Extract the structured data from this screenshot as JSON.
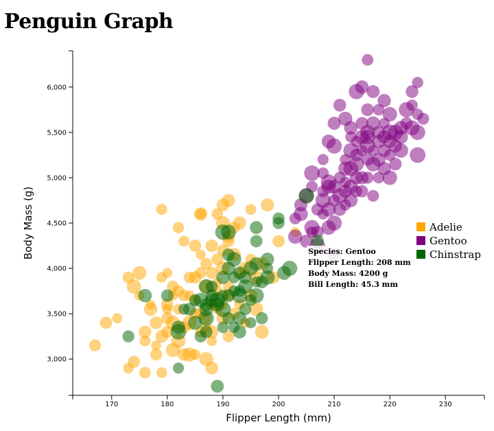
{
  "page": {
    "title": "Penguin Graph"
  },
  "tooltip": {
    "species": "Species: Gentoo",
    "flipper": "Flipper Length: 208 mm",
    "mass": "Body Mass: 4200 g",
    "bill": "Bill Length: 45.3 mm"
  },
  "chart_data": {
    "type": "scatter",
    "xlabel": "Flipper Length (mm)",
    "ylabel": "Body Mass (g)",
    "xlim": [
      163,
      237
    ],
    "ylim": [
      2600,
      6400
    ],
    "xticks": [
      170,
      180,
      190,
      200,
      210,
      220,
      230
    ],
    "yticks": [
      3000,
      3500,
      4000,
      4500,
      5000,
      5500,
      6000
    ],
    "xtick_labels": [
      "170",
      "180",
      "190",
      "200",
      "210",
      "220",
      "230"
    ],
    "ytick_labels": [
      "3,000",
      "3,500",
      "4,000",
      "4,500",
      "5,000",
      "5,500",
      "6,000"
    ],
    "legend_position": "right",
    "grid": false,
    "series": [
      {
        "name": "Adelie",
        "color": "#ffa500",
        "points": [
          [
            167,
            3150
          ],
          [
            169,
            3400
          ],
          [
            171,
            3450
          ],
          [
            173,
            2900
          ],
          [
            173,
            3900
          ],
          [
            174,
            2970
          ],
          [
            175,
            3700
          ],
          [
            175,
            3950
          ],
          [
            176,
            3300
          ],
          [
            176,
            2850
          ],
          [
            176,
            3200
          ],
          [
            177,
            3550
          ],
          [
            178,
            3400
          ],
          [
            178,
            3150
          ],
          [
            178,
            3050
          ],
          [
            179,
            2850
          ],
          [
            179,
            3250
          ],
          [
            179,
            3900
          ],
          [
            180,
            3600
          ],
          [
            180,
            3300
          ],
          [
            180,
            3550
          ],
          [
            180,
            3950
          ],
          [
            181,
            3100
          ],
          [
            181,
            3400
          ],
          [
            181,
            3700
          ],
          [
            181,
            3800
          ],
          [
            182,
            3200
          ],
          [
            182,
            3550
          ],
          [
            182,
            3750
          ],
          [
            183,
            3350
          ],
          [
            183,
            3050
          ],
          [
            183,
            4300
          ],
          [
            184,
            3700
          ],
          [
            184,
            3400
          ],
          [
            184,
            3900
          ],
          [
            185,
            3050
          ],
          [
            185,
            4250
          ],
          [
            185,
            3500
          ],
          [
            185,
            3650
          ],
          [
            186,
            4600
          ],
          [
            186,
            3300
          ],
          [
            186,
            3950
          ],
          [
            186,
            4150
          ],
          [
            187,
            3000
          ],
          [
            187,
            3350
          ],
          [
            187,
            3800
          ],
          [
            187,
            4050
          ],
          [
            187,
            3450
          ],
          [
            188,
            4250
          ],
          [
            188,
            3600
          ],
          [
            188,
            3300
          ],
          [
            188,
            2900
          ],
          [
            188,
            3200
          ],
          [
            189,
            3750
          ],
          [
            189,
            4100
          ],
          [
            189,
            3550
          ],
          [
            189,
            3850
          ],
          [
            190,
            4200
          ],
          [
            190,
            3450
          ],
          [
            190,
            4700
          ],
          [
            190,
            4000
          ],
          [
            191,
            3800
          ],
          [
            191,
            3250
          ],
          [
            191,
            4300
          ],
          [
            191,
            3700
          ],
          [
            192,
            4150
          ],
          [
            192,
            3500
          ],
          [
            192,
            4450
          ],
          [
            193,
            3600
          ],
          [
            193,
            3950
          ],
          [
            194,
            4000
          ],
          [
            194,
            3400
          ],
          [
            195,
            4100
          ],
          [
            195,
            3700
          ],
          [
            196,
            3550
          ],
          [
            196,
            3900
          ],
          [
            197,
            4050
          ],
          [
            197,
            3300
          ],
          [
            198,
            4700
          ],
          [
            199,
            3900
          ],
          [
            200,
            4300
          ],
          [
            203,
            4400
          ],
          [
            179,
            4650
          ],
          [
            182,
            4450
          ],
          [
            186,
            4600
          ],
          [
            189,
            4600
          ],
          [
            191,
            4750
          ],
          [
            193,
            4500
          ],
          [
            195,
            4650
          ],
          [
            184,
            3050
          ],
          [
            177,
            3600
          ],
          [
            183,
            3700
          ],
          [
            185,
            3900
          ],
          [
            186,
            3500
          ],
          [
            190,
            3600
          ],
          [
            174,
            3800
          ],
          [
            180,
            3450
          ],
          [
            190,
            4500
          ],
          [
            191,
            4350
          ],
          [
            188,
            3950
          ]
        ]
      },
      {
        "name": "Gentoo",
        "color": "#800080",
        "points": [
          [
            203,
            4550
          ],
          [
            205,
            4800
          ],
          [
            206,
            4450
          ],
          [
            207,
            4650
          ],
          [
            208,
            4600
          ],
          [
            208,
            4850
          ],
          [
            209,
            4450
          ],
          [
            209,
            4900
          ],
          [
            210,
            4150
          ],
          [
            210,
            4500
          ],
          [
            210,
            4750
          ],
          [
            211,
            4800
          ],
          [
            211,
            5000
          ],
          [
            212,
            4700
          ],
          [
            212,
            4950
          ],
          [
            212,
            5200
          ],
          [
            213,
            4750
          ],
          [
            213,
            5100
          ],
          [
            213,
            5300
          ],
          [
            214,
            4850
          ],
          [
            214,
            5000
          ],
          [
            214,
            5400
          ],
          [
            215,
            4850
          ],
          [
            215,
            5000
          ],
          [
            215,
            5300
          ],
          [
            215,
            5600
          ],
          [
            216,
            5000
          ],
          [
            216,
            5200
          ],
          [
            216,
            5500
          ],
          [
            216,
            6300
          ],
          [
            217,
            4800
          ],
          [
            217,
            5300
          ],
          [
            217,
            5600
          ],
          [
            218,
            5000
          ],
          [
            218,
            5500
          ],
          [
            218,
            5750
          ],
          [
            219,
            5100
          ],
          [
            219,
            5300
          ],
          [
            219,
            5600
          ],
          [
            220,
            5000
          ],
          [
            220,
            5400
          ],
          [
            220,
            5700
          ],
          [
            221,
            5150
          ],
          [
            221,
            5500
          ],
          [
            222,
            5300
          ],
          [
            222,
            5550
          ],
          [
            223,
            5600
          ],
          [
            224,
            5950
          ],
          [
            224,
            5800
          ],
          [
            225,
            5500
          ],
          [
            225,
            5700
          ],
          [
            225,
            6050
          ],
          [
            226,
            5650
          ],
          [
            207,
            4400
          ],
          [
            208,
            5200
          ],
          [
            209,
            5400
          ],
          [
            210,
            5600
          ],
          [
            211,
            5800
          ],
          [
            213,
            5550
          ],
          [
            214,
            5950
          ],
          [
            215,
            6000
          ],
          [
            217,
            5950
          ],
          [
            208,
            5050
          ],
          [
            210,
            5350
          ],
          [
            212,
            5650
          ],
          [
            219,
            5850
          ],
          [
            223,
            5750
          ],
          [
            203,
            4350
          ],
          [
            204,
            4700
          ],
          [
            206,
            5050
          ],
          [
            208,
            4750
          ],
          [
            211,
            4650
          ],
          [
            212,
            4850
          ],
          [
            213,
            4900
          ],
          [
            214,
            5150
          ],
          [
            216,
            5350
          ],
          [
            218,
            5200
          ],
          [
            220,
            5500
          ],
          [
            222,
            5450
          ],
          [
            224,
            5550
          ],
          [
            205,
            4300
          ],
          [
            206,
            4400
          ],
          [
            209,
            4950
          ],
          [
            210,
            4900
          ],
          [
            212,
            5100
          ],
          [
            214,
            5250
          ],
          [
            216,
            5450
          ],
          [
            217,
            5150
          ],
          [
            219,
            5450
          ],
          [
            221,
            5350
          ],
          [
            207,
            4250
          ],
          [
            209,
            4650
          ],
          [
            213,
            5450
          ],
          [
            216,
            5750
          ],
          [
            218,
            5400
          ],
          [
            225,
            5250
          ],
          [
            204,
            4600
          ],
          [
            206,
            4900
          ],
          [
            215,
            5450
          ],
          [
            220,
            5250
          ]
        ]
      },
      {
        "name": "Chinstrap",
        "color": "#006400",
        "points": [
          [
            173,
            3250
          ],
          [
            176,
            3700
          ],
          [
            180,
            3700
          ],
          [
            182,
            2900
          ],
          [
            182,
            3300
          ],
          [
            182,
            3350
          ],
          [
            183,
            3550
          ],
          [
            184,
            3550
          ],
          [
            185,
            3650
          ],
          [
            185,
            3400
          ],
          [
            186,
            3250
          ],
          [
            186,
            3650
          ],
          [
            187,
            3300
          ],
          [
            187,
            3450
          ],
          [
            187,
            3550
          ],
          [
            187,
            3600
          ],
          [
            187,
            3800
          ],
          [
            188,
            3800
          ],
          [
            188,
            3700
          ],
          [
            189,
            2700
          ],
          [
            189,
            3650
          ],
          [
            189,
            3600
          ],
          [
            190,
            3350
          ],
          [
            190,
            3700
          ],
          [
            190,
            3900
          ],
          [
            191,
            3450
          ],
          [
            191,
            3700
          ],
          [
            191,
            4000
          ],
          [
            191,
            4150
          ],
          [
            192,
            3350
          ],
          [
            192,
            3750
          ],
          [
            192,
            4100
          ],
          [
            193,
            3300
          ],
          [
            193,
            3450
          ],
          [
            193,
            3700
          ],
          [
            193,
            3750
          ],
          [
            193,
            3950
          ],
          [
            194,
            3550
          ],
          [
            194,
            3900
          ],
          [
            195,
            3400
          ],
          [
            195,
            3650
          ],
          [
            195,
            4000
          ],
          [
            196,
            3700
          ],
          [
            196,
            3850
          ],
          [
            196,
            4050
          ],
          [
            196,
            4300
          ],
          [
            197,
            3850
          ],
          [
            197,
            3450
          ],
          [
            198,
            3900
          ],
          [
            198,
            4100
          ],
          [
            200,
            4550
          ],
          [
            201,
            3950
          ],
          [
            202,
            4000
          ],
          [
            205,
            4800
          ],
          [
            207,
            4300
          ],
          [
            190,
            4400
          ],
          [
            191,
            4400
          ],
          [
            196,
            4450
          ],
          [
            198,
            4000
          ],
          [
            200,
            4500
          ],
          [
            192,
            3900
          ],
          [
            194,
            3800
          ],
          [
            188,
            3650
          ],
          [
            190,
            3550
          ]
        ]
      }
    ]
  }
}
